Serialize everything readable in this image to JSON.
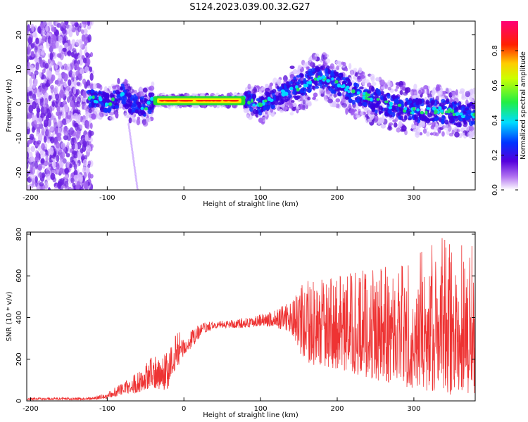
{
  "figure": {
    "title": "S124.2023.039.00.32.G27"
  },
  "chart_data": [
    {
      "type": "heatmap",
      "title": "S124.2023.039.00.32.G27",
      "xlabel": "Height of straight line (km)",
      "ylabel": "Frequency (Hz)",
      "xlim": [
        -205,
        380
      ],
      "ylim": [
        -25,
        24
      ],
      "xticks": [
        -200,
        -100,
        0,
        100,
        200,
        300
      ],
      "yticks": [
        -20,
        -10,
        0,
        10,
        20
      ],
      "colorbar": {
        "label": "Normalized spectral amplitude",
        "range": [
          0,
          0.97
        ],
        "ticks": [
          "0.0",
          "0.2",
          "0.4",
          "0.6",
          "0.8"
        ],
        "colormap": "rainbow (white → violet → blue → cyan → green → yellow → red → pink)"
      },
      "ridge": {
        "x": [
          -125,
          -110,
          -100,
          -90,
          -80,
          -70,
          -60,
          -50,
          -40,
          -20,
          0,
          20,
          40,
          60,
          80,
          100,
          120,
          140,
          160,
          170,
          180,
          190,
          200,
          210,
          220,
          240,
          260,
          280,
          300,
          320,
          340,
          360,
          380
        ],
        "frequency": [
          1.5,
          1,
          0,
          1,
          3,
          0,
          -0.5,
          -1,
          1,
          0.8,
          0.9,
          1.0,
          0.9,
          0.9,
          1.5,
          -0.5,
          2,
          4,
          6,
          7.5,
          8,
          7,
          6,
          5,
          3.5,
          2,
          0,
          -1,
          -2,
          -2,
          -2,
          -3,
          -3
        ]
      },
      "grid": false,
      "legend": "colorbar right"
    },
    {
      "type": "line",
      "xlabel": "Height of straight line (km)",
      "ylabel": "SNR (10 * v/v)",
      "xlim": [
        -205,
        380
      ],
      "ylim": [
        0,
        810
      ],
      "xticks": [
        -200,
        -100,
        0,
        100,
        200,
        300
      ],
      "yticks": [
        0,
        200,
        400,
        600,
        800
      ],
      "series_color": "#ee3333",
      "envelope": {
        "x": [
          -205,
          -120,
          -100,
          -80,
          -60,
          -40,
          -20,
          -10,
          0,
          10,
          20,
          30,
          40,
          60,
          80,
          100,
          120,
          140,
          150,
          160,
          200,
          250,
          300,
          340,
          360,
          380
        ],
        "low": [
          5,
          5,
          10,
          30,
          40,
          60,
          50,
          150,
          220,
          250,
          300,
          330,
          350,
          350,
          350,
          360,
          350,
          330,
          220,
          180,
          150,
          100,
          60,
          30,
          20,
          20
        ],
        "high": [
          15,
          18,
          40,
          90,
          140,
          220,
          240,
          360,
          300,
          340,
          370,
          380,
          380,
          390,
          400,
          420,
          440,
          480,
          540,
          580,
          600,
          650,
          700,
          790,
          800,
          760
        ]
      },
      "grid": false
    }
  ]
}
